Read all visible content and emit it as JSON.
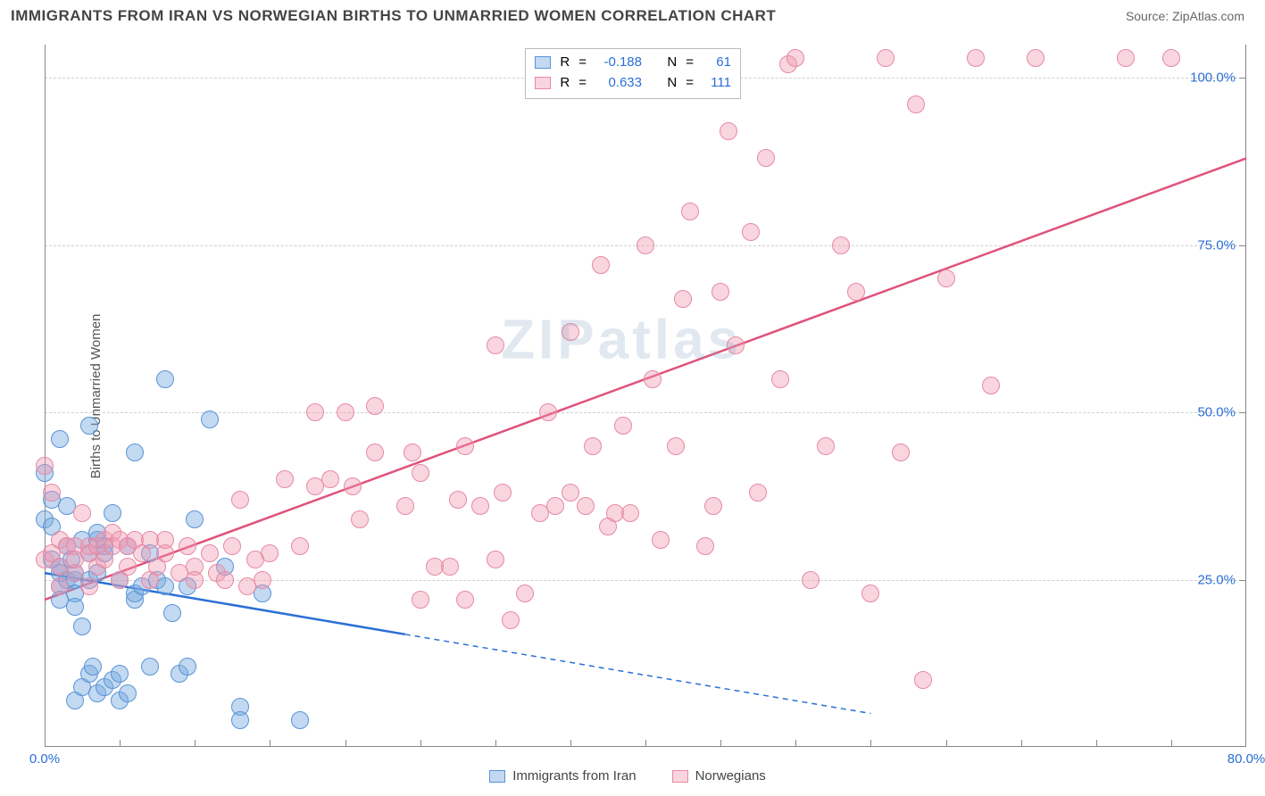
{
  "header": {
    "title": "IMMIGRANTS FROM IRAN VS NORWEGIAN BIRTHS TO UNMARRIED WOMEN CORRELATION CHART",
    "source_label": "Source: ",
    "source_value": "ZipAtlas.com"
  },
  "watermark": "ZIPatlas",
  "chart": {
    "type": "scatter",
    "background_color": "#ffffff",
    "grid_color": "#d0d0d0",
    "axis_color": "#888888",
    "tick_label_color": "#2a6fd6",
    "y_axis_label": "Births to Unmarried Women",
    "y_axis_label_color": "#555555",
    "xlim": [
      0,
      80
    ],
    "ylim": [
      0,
      105
    ],
    "x_ticks_major": [
      0,
      80
    ],
    "x_ticks_minor": [
      5,
      10,
      15,
      20,
      25,
      30,
      35,
      40,
      45,
      50,
      55,
      60,
      65,
      70,
      75
    ],
    "x_tick_labels": {
      "0": "0.0%",
      "80": "80.0%"
    },
    "y_ticks": [
      25,
      50,
      75,
      100
    ],
    "y_tick_labels": {
      "25": "25.0%",
      "50": "50.0%",
      "75": "75.0%",
      "100": "100.0%"
    },
    "point_radius": 10,
    "series": [
      {
        "name": "Immigrants from Iran",
        "fill": "rgba(120,170,225,0.45)",
        "stroke": "#5a94d6",
        "trend_color": "#2a6fd6",
        "trend_solid_until_x": 24,
        "trend": {
          "x1": 0,
          "y1": 26,
          "x2": 55,
          "y2": 5
        },
        "r_value": "-0.188",
        "n_value": "61",
        "points": [
          [
            0,
            41
          ],
          [
            0,
            34
          ],
          [
            0.5,
            33
          ],
          [
            0.5,
            37
          ],
          [
            0.5,
            28
          ],
          [
            1,
            46
          ],
          [
            1,
            24
          ],
          [
            1,
            26
          ],
          [
            1,
            22
          ],
          [
            1,
            27
          ],
          [
            1.5,
            30
          ],
          [
            1.5,
            36
          ],
          [
            1.5,
            25
          ],
          [
            1.8,
            28
          ],
          [
            2,
            25
          ],
          [
            2,
            26
          ],
          [
            2,
            23
          ],
          [
            2,
            21
          ],
          [
            2,
            7
          ],
          [
            2.5,
            31
          ],
          [
            2.5,
            18
          ],
          [
            2.5,
            9
          ],
          [
            3,
            48
          ],
          [
            3,
            29
          ],
          [
            3,
            25
          ],
          [
            3,
            11
          ],
          [
            3.2,
            12
          ],
          [
            3.5,
            31
          ],
          [
            3.5,
            32
          ],
          [
            3.5,
            26
          ],
          [
            3.5,
            8
          ],
          [
            4,
            30
          ],
          [
            4,
            29
          ],
          [
            4,
            9
          ],
          [
            4.5,
            35
          ],
          [
            4.5,
            10
          ],
          [
            5,
            25
          ],
          [
            5,
            7
          ],
          [
            5,
            11
          ],
          [
            5.5,
            30
          ],
          [
            5.5,
            8
          ],
          [
            6,
            44
          ],
          [
            6,
            22
          ],
          [
            6,
            23
          ],
          [
            6.5,
            24
          ],
          [
            7,
            29
          ],
          [
            7,
            12
          ],
          [
            7.5,
            25
          ],
          [
            8,
            55
          ],
          [
            8,
            24
          ],
          [
            8.5,
            20
          ],
          [
            9,
            11
          ],
          [
            9.5,
            24
          ],
          [
            9.5,
            12
          ],
          [
            10,
            34
          ],
          [
            11,
            49
          ],
          [
            12,
            27
          ],
          [
            13,
            6
          ],
          [
            13,
            4
          ],
          [
            14.5,
            23
          ],
          [
            17,
            4
          ]
        ]
      },
      {
        "name": "Norwegians",
        "fill": "rgba(240,150,175,0.40)",
        "stroke": "#e68aa6",
        "trend_color": "#e0527a",
        "trend_solid_until_x": 80,
        "trend": {
          "x1": 0,
          "y1": 22,
          "x2": 80,
          "y2": 88
        },
        "r_value": "0.633",
        "n_value": "111",
        "points": [
          [
            0,
            42
          ],
          [
            0,
            28
          ],
          [
            0.5,
            29
          ],
          [
            0.5,
            38
          ],
          [
            1,
            31
          ],
          [
            1,
            27
          ],
          [
            1,
            24
          ],
          [
            1.5,
            30
          ],
          [
            2,
            30
          ],
          [
            2,
            26
          ],
          [
            2,
            28
          ],
          [
            2.5,
            35
          ],
          [
            3,
            29
          ],
          [
            3,
            30
          ],
          [
            3,
            24
          ],
          [
            3.5,
            30
          ],
          [
            3.5,
            27
          ],
          [
            4,
            31
          ],
          [
            4,
            28
          ],
          [
            4.5,
            32
          ],
          [
            4.5,
            30
          ],
          [
            5,
            31
          ],
          [
            5,
            25
          ],
          [
            5.5,
            27
          ],
          [
            5.5,
            30
          ],
          [
            6,
            31
          ],
          [
            6.5,
            29
          ],
          [
            7,
            31
          ],
          [
            7,
            25
          ],
          [
            7.5,
            27
          ],
          [
            8,
            29
          ],
          [
            8,
            31
          ],
          [
            9,
            26
          ],
          [
            9.5,
            30
          ],
          [
            10,
            27
          ],
          [
            10,
            25
          ],
          [
            11,
            29
          ],
          [
            11.5,
            26
          ],
          [
            12,
            25
          ],
          [
            12.5,
            30
          ],
          [
            13,
            37
          ],
          [
            13.5,
            24
          ],
          [
            14,
            28
          ],
          [
            14.5,
            25
          ],
          [
            15,
            29
          ],
          [
            16,
            40
          ],
          [
            17,
            30
          ],
          [
            18,
            39
          ],
          [
            18,
            50
          ],
          [
            19,
            40
          ],
          [
            20,
            50
          ],
          [
            20.5,
            39
          ],
          [
            21,
            34
          ],
          [
            22,
            44
          ],
          [
            22,
            51
          ],
          [
            24,
            36
          ],
          [
            24.5,
            44
          ],
          [
            25,
            41
          ],
          [
            25,
            22
          ],
          [
            26,
            27
          ],
          [
            27,
            27
          ],
          [
            27.5,
            37
          ],
          [
            28,
            45
          ],
          [
            28,
            22
          ],
          [
            29,
            36
          ],
          [
            30,
            28
          ],
          [
            30.5,
            38
          ],
          [
            30,
            60
          ],
          [
            31,
            19
          ],
          [
            32,
            23
          ],
          [
            33,
            35
          ],
          [
            33.5,
            50
          ],
          [
            34,
            36
          ],
          [
            35,
            62
          ],
          [
            35,
            38
          ],
          [
            36,
            36
          ],
          [
            36.5,
            45
          ],
          [
            37,
            72
          ],
          [
            37.5,
            33
          ],
          [
            38,
            35
          ],
          [
            38.5,
            48
          ],
          [
            39,
            35
          ],
          [
            40,
            75
          ],
          [
            40.5,
            55
          ],
          [
            41,
            31
          ],
          [
            42,
            45
          ],
          [
            42.5,
            67
          ],
          [
            43,
            80
          ],
          [
            44,
            30
          ],
          [
            44.5,
            36
          ],
          [
            45,
            68
          ],
          [
            45.5,
            92
          ],
          [
            46,
            60
          ],
          [
            47,
            77
          ],
          [
            47.5,
            38
          ],
          [
            48,
            88
          ],
          [
            49,
            55
          ],
          [
            49.5,
            102
          ],
          [
            50,
            103
          ],
          [
            51,
            25
          ],
          [
            52,
            45
          ],
          [
            53,
            75
          ],
          [
            54,
            68
          ],
          [
            55,
            23
          ],
          [
            56,
            103
          ],
          [
            57,
            44
          ],
          [
            58,
            96
          ],
          [
            58.5,
            10
          ],
          [
            60,
            70
          ],
          [
            62,
            103
          ],
          [
            63,
            54
          ],
          [
            66,
            103
          ],
          [
            72,
            103
          ],
          [
            75,
            103
          ]
        ]
      }
    ]
  },
  "stats_box": {
    "r_label": "R",
    "n_label": "N",
    "eq": "="
  },
  "bottom_legend": {
    "items": [
      {
        "swatch_fill": "rgba(120,170,225,0.45)",
        "swatch_stroke": "#5a94d6",
        "label": "Immigrants from Iran"
      },
      {
        "swatch_fill": "rgba(240,150,175,0.40)",
        "swatch_stroke": "#e68aa6",
        "label": "Norwegians"
      }
    ]
  }
}
